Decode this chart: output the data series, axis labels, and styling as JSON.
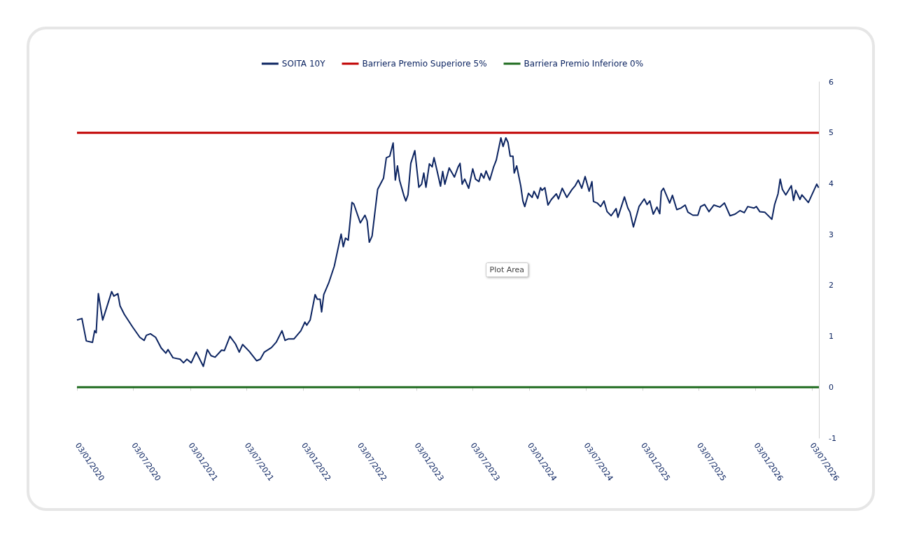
{
  "chart_data": {
    "type": "line",
    "x": [
      "2020-01-03",
      "2020-01-19",
      "2020-02-02",
      "2020-02-22",
      "2020-02-29",
      "2020-03-05",
      "2020-03-12",
      "2020-03-26",
      "2020-04-07",
      "2020-04-24",
      "2020-05-01",
      "2020-05-14",
      "2020-05-21",
      "2020-06-04",
      "2020-07-01",
      "2020-07-24",
      "2020-08-07",
      "2020-08-14",
      "2020-08-27",
      "2020-09-13",
      "2020-10-01",
      "2020-10-16",
      "2020-10-23",
      "2020-11-08",
      "2020-12-01",
      "2020-12-12",
      "2020-12-23",
      "2021-01-06",
      "2021-01-22",
      "2021-02-14",
      "2021-02-27",
      "2021-03-11",
      "2021-03-24",
      "2021-04-14",
      "2021-04-23",
      "2021-05-11",
      "2021-05-29",
      "2021-06-10",
      "2021-06-21",
      "2021-07-13",
      "2021-08-05",
      "2021-08-17",
      "2021-08-30",
      "2021-09-22",
      "2021-10-08",
      "2021-10-26",
      "2021-11-05",
      "2021-11-16",
      "2021-12-04",
      "2021-12-26",
      "2022-01-08",
      "2022-01-14",
      "2022-01-25",
      "2022-02-10",
      "2022-02-17",
      "2022-02-26",
      "2022-03-03",
      "2022-03-10",
      "2022-03-26",
      "2022-04-13",
      "2022-05-05",
      "2022-05-12",
      "2022-05-19",
      "2022-05-28",
      "2022-06-09",
      "2022-06-15",
      "2022-07-06",
      "2022-07-21",
      "2022-07-28",
      "2022-08-04",
      "2022-08-13",
      "2022-08-31",
      "2022-09-19",
      "2022-09-28",
      "2022-10-09",
      "2022-10-20",
      "2022-10-27",
      "2022-11-03",
      "2022-11-10",
      "2022-11-24",
      "2022-11-30",
      "2022-12-07",
      "2022-12-16",
      "2022-12-29",
      "2023-01-11",
      "2023-01-20",
      "2023-01-27",
      "2023-02-03",
      "2023-02-14",
      "2023-02-23",
      "2023-03-01",
      "2023-03-11",
      "2023-03-22",
      "2023-03-29",
      "2023-04-05",
      "2023-04-19",
      "2023-05-06",
      "2023-05-18",
      "2023-05-24",
      "2023-05-31",
      "2023-06-08",
      "2023-06-21",
      "2023-07-04",
      "2023-07-13",
      "2023-07-24",
      "2023-07-31",
      "2023-08-09",
      "2023-08-16",
      "2023-08-28",
      "2023-09-09",
      "2023-09-18",
      "2023-10-03",
      "2023-10-10",
      "2023-10-19",
      "2023-10-26",
      "2023-11-02",
      "2023-11-11",
      "2023-11-15",
      "2023-11-23",
      "2023-12-06",
      "2023-12-13",
      "2023-12-19",
      "2023-12-31",
      "2024-01-12",
      "2024-01-18",
      "2024-01-30",
      "2024-02-08",
      "2024-02-13",
      "2024-02-22",
      "2024-03-03",
      "2024-03-14",
      "2024-03-30",
      "2024-04-06",
      "2024-04-18",
      "2024-05-03",
      "2024-05-19",
      "2024-05-30",
      "2024-06-09",
      "2024-06-20",
      "2024-07-01",
      "2024-07-14",
      "2024-07-23",
      "2024-07-28",
      "2024-08-09",
      "2024-08-20",
      "2024-08-31",
      "2024-09-10",
      "2024-09-23",
      "2024-10-09",
      "2024-10-15",
      "2024-11-05",
      "2024-11-16",
      "2024-11-23",
      "2024-12-04",
      "2024-12-22",
      "2025-01-08",
      "2025-01-17",
      "2025-01-26",
      "2025-02-06",
      "2025-02-18",
      "2025-02-27",
      "2025-03-04",
      "2025-03-11",
      "2025-03-20",
      "2025-03-31",
      "2025-04-09",
      "2025-04-23",
      "2025-05-06",
      "2025-05-20",
      "2025-05-29",
      "2025-06-14",
      "2025-06-30",
      "2025-07-09",
      "2025-07-22",
      "2025-08-05",
      "2025-08-21",
      "2025-09-09",
      "2025-09-24",
      "2025-10-12",
      "2025-10-28",
      "2025-11-13",
      "2025-11-27",
      "2025-12-08",
      "2025-12-28",
      "2026-01-05",
      "2026-01-16",
      "2026-02-01",
      "2026-02-24",
      "2026-03-05",
      "2026-03-16",
      "2026-03-23",
      "2026-03-30",
      "2026-04-10",
      "2026-04-28",
      "2026-05-05",
      "2026-05-12",
      "2026-05-26",
      "2026-06-01",
      "2026-06-22",
      "2026-07-19",
      "2026-07-25"
    ],
    "series": [
      {
        "name": "SOITA 10Y",
        "color": "#0c2461",
        "values": [
          1.32,
          1.35,
          0.91,
          0.88,
          1.11,
          1.07,
          1.84,
          1.32,
          1.55,
          1.88,
          1.79,
          1.84,
          1.6,
          1.43,
          1.18,
          0.98,
          0.92,
          1.02,
          1.05,
          0.98,
          0.77,
          0.67,
          0.74,
          0.58,
          0.55,
          0.48,
          0.55,
          0.48,
          0.69,
          0.41,
          0.74,
          0.62,
          0.59,
          0.73,
          0.72,
          1.0,
          0.85,
          0.69,
          0.84,
          0.7,
          0.52,
          0.55,
          0.69,
          0.78,
          0.89,
          1.11,
          0.92,
          0.95,
          0.95,
          1.11,
          1.28,
          1.22,
          1.32,
          1.82,
          1.73,
          1.73,
          1.48,
          1.82,
          2.05,
          2.38,
          3.01,
          2.76,
          2.93,
          2.89,
          3.63,
          3.6,
          3.23,
          3.38,
          3.27,
          2.85,
          2.97,
          3.89,
          4.11,
          4.51,
          4.54,
          4.8,
          4.07,
          4.35,
          4.06,
          3.76,
          3.66,
          3.78,
          4.4,
          4.65,
          3.93,
          3.99,
          4.21,
          3.93,
          4.39,
          4.33,
          4.51,
          4.25,
          3.95,
          4.24,
          3.99,
          4.31,
          4.13,
          4.33,
          4.4,
          3.99,
          4.09,
          3.91,
          4.29,
          4.09,
          4.04,
          4.2,
          4.11,
          4.25,
          4.07,
          4.32,
          4.46,
          4.9,
          4.73,
          4.9,
          4.81,
          4.54,
          4.54,
          4.21,
          4.35,
          3.96,
          3.66,
          3.55,
          3.81,
          3.73,
          3.85,
          3.71,
          3.92,
          3.87,
          3.92,
          3.58,
          3.69,
          3.8,
          3.7,
          3.91,
          3.73,
          3.88,
          3.96,
          4.07,
          3.91,
          4.14,
          3.85,
          4.04,
          3.65,
          3.62,
          3.55,
          3.66,
          3.45,
          3.37,
          3.51,
          3.34,
          3.74,
          3.52,
          3.44,
          3.15,
          3.55,
          3.7,
          3.59,
          3.66,
          3.4,
          3.54,
          3.41,
          3.85,
          3.91,
          3.78,
          3.62,
          3.77,
          3.49,
          3.52,
          3.58,
          3.44,
          3.38,
          3.38,
          3.55,
          3.59,
          3.45,
          3.58,
          3.54,
          3.62,
          3.37,
          3.4,
          3.47,
          3.43,
          3.55,
          3.52,
          3.55,
          3.45,
          3.44,
          3.3,
          3.59,
          3.8,
          4.09,
          3.89,
          3.78,
          3.96,
          3.67,
          3.87,
          3.69,
          3.78,
          3.63,
          3.99,
          3.92
        ]
      }
    ],
    "ref_lines": [
      {
        "axis": "y",
        "value": 5,
        "label": "Barriera Premio Superiore 5%",
        "color": "#c00000"
      },
      {
        "axis": "y",
        "value": 0,
        "label": "Barriera Premio Inferiore 0%",
        "color": "#1e6b1e"
      }
    ],
    "xlim": [
      "2020-01-03",
      "2026-07-26"
    ],
    "xticks": [
      {
        "value": "2020-01-03",
        "label": "03/01/2020"
      },
      {
        "value": "2020-07-03",
        "label": "03/07/2020"
      },
      {
        "value": "2021-01-03",
        "label": "03/01/2021"
      },
      {
        "value": "2021-07-03",
        "label": "03/07/2021"
      },
      {
        "value": "2022-01-03",
        "label": "03/01/2022"
      },
      {
        "value": "2022-07-03",
        "label": "03/07/2022"
      },
      {
        "value": "2023-01-03",
        "label": "03/01/2023"
      },
      {
        "value": "2023-07-03",
        "label": "03/07/2023"
      },
      {
        "value": "2024-01-03",
        "label": "03/01/2024"
      },
      {
        "value": "2024-07-03",
        "label": "03/07/2024"
      },
      {
        "value": "2025-01-03",
        "label": "03/01/2025"
      },
      {
        "value": "2025-07-03",
        "label": "03/07/2025"
      },
      {
        "value": "2026-01-03",
        "label": "03/01/2026"
      },
      {
        "value": "2026-07-03",
        "label": "03/07/2026"
      }
    ],
    "ylim": [
      -1,
      6
    ],
    "yticks": [
      -1,
      0,
      1,
      2,
      3,
      4,
      5,
      6
    ],
    "legend": "top",
    "grid": false,
    "marker": "none",
    "line_style": "solid",
    "annotations": [
      "Plot Area"
    ]
  }
}
